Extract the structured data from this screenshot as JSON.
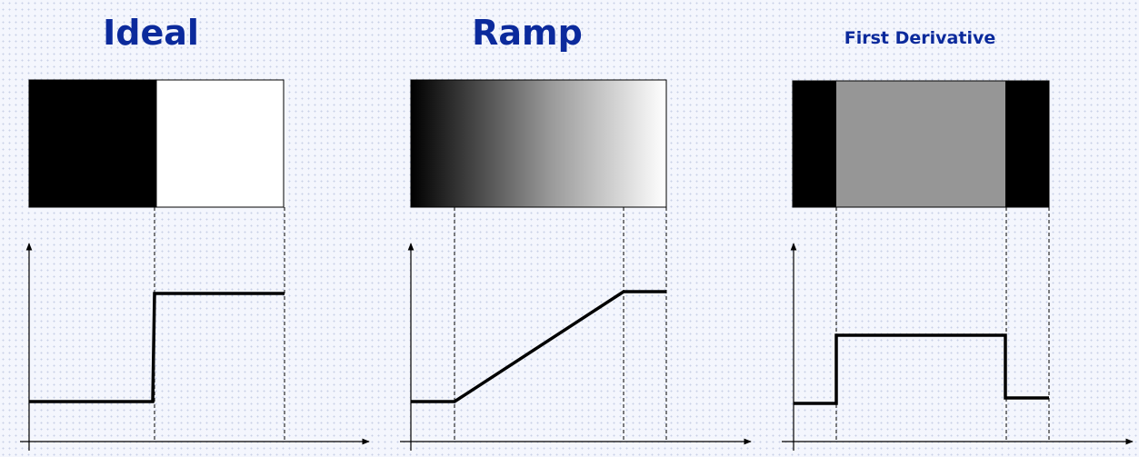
{
  "titles": {
    "ideal": "Ideal",
    "ramp": "Ramp",
    "first_derivative": "First Derivative"
  },
  "colors": {
    "title": "#0b2a9c",
    "dark": "#000000",
    "light": "#ffffff",
    "mid_gray": "#969696",
    "line": "#000000"
  }
}
